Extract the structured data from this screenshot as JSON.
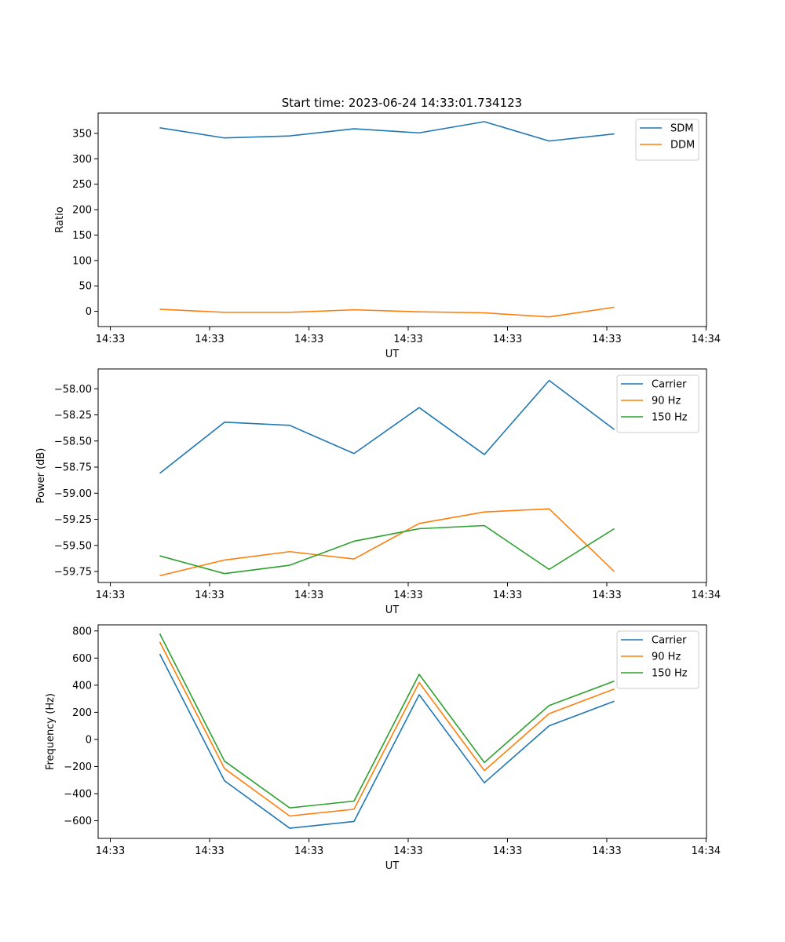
{
  "figure": {
    "title": "Start time: 2023-06-24 14:33:01.734123"
  },
  "chart_data": [
    {
      "type": "line",
      "xlabel": "UT",
      "ylabel": "Ratio",
      "x_tick_labels": [
        "14:33",
        "14:33",
        "14:33",
        "14:33",
        "14:33",
        "14:33",
        "14:34"
      ],
      "y_ticks": [
        0,
        50,
        100,
        150,
        200,
        250,
        300,
        350
      ],
      "y_tick_labels": [
        "0",
        "50",
        "100",
        "150",
        "200",
        "250",
        "300",
        "350"
      ],
      "ylim": [
        -30,
        390
      ],
      "grid": false,
      "legend_position": "top-right",
      "series": [
        {
          "name": "SDM",
          "color": "#1f77b4",
          "values": [
            361,
            341,
            345,
            359,
            351,
            373,
            335,
            349
          ]
        },
        {
          "name": "DDM",
          "color": "#ff7f0e",
          "values": [
            4,
            -2,
            -2,
            3,
            -1,
            -3,
            -11,
            8
          ]
        }
      ]
    },
    {
      "type": "line",
      "xlabel": "UT",
      "ylabel": "Power (dB)",
      "x_tick_labels": [
        "14:33",
        "14:33",
        "14:33",
        "14:33",
        "14:33",
        "14:33",
        "14:34"
      ],
      "y_ticks": [
        -59.75,
        -59.5,
        -59.25,
        -59.0,
        -58.75,
        -58.5,
        -58.25,
        -58.0
      ],
      "y_tick_labels": [
        "−59.75",
        "−59.50",
        "−59.25",
        "−59.00",
        "−58.75",
        "−58.50",
        "−58.25",
        "−58.00"
      ],
      "ylim": [
        -59.855,
        -57.81
      ],
      "grid": false,
      "legend_position": "top-right",
      "series": [
        {
          "name": "Carrier",
          "color": "#1f77b4",
          "values": [
            -58.81,
            -58.32,
            -58.35,
            -58.62,
            -58.18,
            -58.63,
            -57.92,
            -58.39
          ]
        },
        {
          "name": "90 Hz",
          "color": "#ff7f0e",
          "values": [
            -59.79,
            -59.64,
            -59.56,
            -59.63,
            -59.29,
            -59.18,
            -59.15,
            -59.75
          ]
        },
        {
          "name": "150 Hz",
          "color": "#2ca02c",
          "values": [
            -59.6,
            -59.77,
            -59.69,
            -59.46,
            -59.34,
            -59.31,
            -59.73,
            -59.34
          ]
        }
      ]
    },
    {
      "type": "line",
      "xlabel": "UT",
      "ylabel": "Frequency (Hz)",
      "x_tick_labels": [
        "14:33",
        "14:33",
        "14:33",
        "14:33",
        "14:33",
        "14:33",
        "14:34"
      ],
      "y_ticks": [
        -600,
        -400,
        -200,
        0,
        200,
        400,
        600,
        800
      ],
      "y_tick_labels": [
        "−600",
        "−400",
        "−200",
        "0",
        "200",
        "400",
        "600",
        "800"
      ],
      "ylim": [
        -730,
        845
      ],
      "grid": false,
      "legend_position": "top-right",
      "series": [
        {
          "name": "Carrier",
          "color": "#1f77b4",
          "values": [
            630,
            -305,
            -655,
            -605,
            330,
            -320,
            100,
            282
          ]
        },
        {
          "name": "90 Hz",
          "color": "#ff7f0e",
          "values": [
            720,
            -215,
            -565,
            -515,
            420,
            -230,
            190,
            372
          ]
        },
        {
          "name": "150 Hz",
          "color": "#2ca02c",
          "values": [
            780,
            -160,
            -505,
            -455,
            480,
            -170,
            250,
            430
          ]
        }
      ]
    }
  ]
}
